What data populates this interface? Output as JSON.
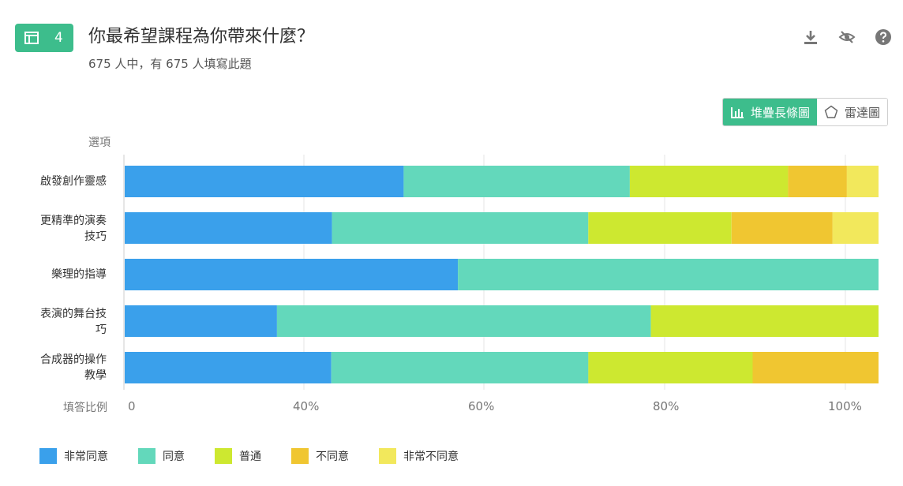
{
  "question": {
    "number": "4",
    "title": "你最希望課程為你帶來什麼？",
    "subtitle": "675 人中，有 675 人填寫此題"
  },
  "toolbar": {
    "icons": [
      "download-icon",
      "hide-icon",
      "help-icon"
    ]
  },
  "view_toggle": {
    "stacked_label": "堆疊長條圖",
    "radar_label": "雷達圖"
  },
  "colors": {
    "accent": "#3dbd8c",
    "series": [
      "#3aa0eb",
      "#63d8bb",
      "#cde830",
      "#f0c631",
      "#f2e85c"
    ]
  },
  "chart_data": {
    "type": "bar",
    "orientation": "horizontal",
    "stacked": true,
    "ylabel": "選項",
    "xlabel": "填答比例",
    "categories": [
      "啟發創作靈感",
      "更精準的演奏技巧",
      "樂理的指導",
      "表演的舞台技巧",
      "合成器的操作教學"
    ],
    "series": [
      {
        "name": "非常同意",
        "values": [
          37.0,
          27.5,
          44.2,
          20.2,
          27.4
        ]
      },
      {
        "name": "同意",
        "values": [
          30.0,
          34.0,
          55.8,
          49.6,
          34.1
        ]
      },
      {
        "name": "普通",
        "values": [
          21.0,
          19.0,
          0,
          30.2,
          21.8
        ]
      },
      {
        "name": "不同意",
        "values": [
          7.8,
          13.4,
          0,
          0,
          16.7
        ]
      },
      {
        "name": "非常不同意",
        "values": [
          4.2,
          6.1,
          0,
          0,
          0
        ]
      }
    ],
    "xticks": [
      "0",
      "40%",
      "60%",
      "80%",
      "100%"
    ],
    "legend_position": "bottom-left",
    "grid": true
  }
}
